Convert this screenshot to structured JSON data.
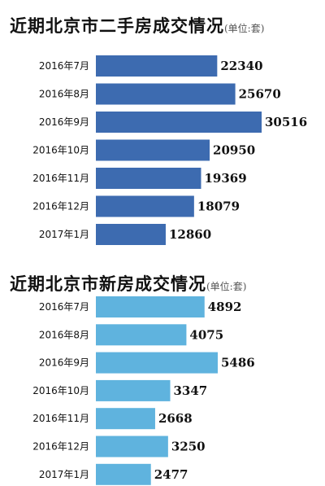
{
  "chart_data": [
    {
      "type": "bar",
      "orientation": "horizontal",
      "title": "近期北京市二手房成交情况",
      "unit_note": "(单位:套)",
      "categories": [
        "2016年7月",
        "2016年8月",
        "2016年9月",
        "2016年10月",
        "2016年11月",
        "2016年12月",
        "2017年1月"
      ],
      "values": [
        22340,
        25670,
        30516,
        20950,
        19369,
        18079,
        12860
      ],
      "value_labels": [
        "22340",
        "25670",
        "30516",
        "20950",
        "19369",
        "18079",
        "12860"
      ],
      "color": "#3d6bb0",
      "grid": false
    },
    {
      "type": "bar",
      "orientation": "horizontal",
      "title": "近期北京市新房成交情况",
      "unit_note": "(单位:套)",
      "categories": [
        "2016年7月",
        "2016年8月",
        "2016年9月",
        "2016年10月",
        "2016年11月",
        "2016年12月",
        "2017年1月"
      ],
      "values": [
        4892,
        4075,
        5486,
        3347,
        2668,
        3250,
        2477
      ],
      "value_labels": [
        "4892",
        "4075",
        "5486",
        "3347",
        "2668",
        "3250",
        "2477"
      ],
      "color": "#5fb3de",
      "grid": false
    }
  ]
}
